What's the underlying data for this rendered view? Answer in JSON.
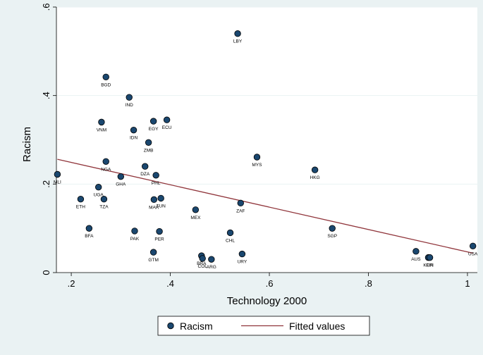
{
  "chart_data": {
    "type": "scatter",
    "title": "",
    "xlabel": "Technology 2000",
    "ylabel": "Racism",
    "xlim": [
      0.17,
      1.02
    ],
    "ylim": [
      0,
      0.6
    ],
    "xticks": [
      0.2,
      0.4,
      0.6,
      0.8,
      1.0
    ],
    "xtick_labels": [
      ".2",
      ".4",
      ".6",
      ".8",
      "1"
    ],
    "yticks": [
      0,
      0.2,
      0.4,
      0.6
    ],
    "ytick_labels": [
      "0",
      ".2",
      ".4",
      ".6"
    ],
    "grid": "horizontal",
    "legend_position": "bottom",
    "colors": {
      "marker": "#1a476f",
      "fit_line": "#90353b",
      "background": "#eaf2f3",
      "plot_bg": "#ffffff",
      "grid": "#eaf2f3"
    },
    "series": [
      {
        "name": "Racism",
        "kind": "scatter",
        "points": [
          {
            "label": "MLI",
            "x": 0.172,
            "y": 0.222
          },
          {
            "label": "ETH",
            "x": 0.219,
            "y": 0.166
          },
          {
            "label": "BFA",
            "x": 0.236,
            "y": 0.1
          },
          {
            "label": "UGA",
            "x": 0.255,
            "y": 0.193
          },
          {
            "label": "VNM",
            "x": 0.261,
            "y": 0.34
          },
          {
            "label": "TZA",
            "x": 0.266,
            "y": 0.166
          },
          {
            "label": "BGD",
            "x": 0.27,
            "y": 0.442
          },
          {
            "label": "NGA",
            "x": 0.27,
            "y": 0.251
          },
          {
            "label": "GHA",
            "x": 0.3,
            "y": 0.217
          },
          {
            "label": "IND",
            "x": 0.317,
            "y": 0.396
          },
          {
            "label": "IDN",
            "x": 0.326,
            "y": 0.322
          },
          {
            "label": "PAK",
            "x": 0.328,
            "y": 0.094
          },
          {
            "label": "DZA",
            "x": 0.349,
            "y": 0.24
          },
          {
            "label": "ZMB",
            "x": 0.356,
            "y": 0.294
          },
          {
            "label": "EGY",
            "x": 0.366,
            "y": 0.342
          },
          {
            "label": "GTM",
            "x": 0.366,
            "y": 0.046
          },
          {
            "label": "MAR",
            "x": 0.367,
            "y": 0.165
          },
          {
            "label": "PHL",
            "x": 0.371,
            "y": 0.22
          },
          {
            "label": "PER",
            "x": 0.378,
            "y": 0.093
          },
          {
            "label": "TUN",
            "x": 0.381,
            "y": 0.168
          },
          {
            "label": "ECU",
            "x": 0.393,
            "y": 0.345
          },
          {
            "label": "MEX",
            "x": 0.451,
            "y": 0.142
          },
          {
            "label": "BRA",
            "x": 0.463,
            "y": 0.038
          },
          {
            "label": "COL",
            "x": 0.465,
            "y": 0.032
          },
          {
            "label": "ARG",
            "x": 0.483,
            "y": 0.03
          },
          {
            "label": "CHL",
            "x": 0.521,
            "y": 0.09
          },
          {
            "label": "LBY",
            "x": 0.536,
            "y": 0.54
          },
          {
            "label": "ZAF",
            "x": 0.542,
            "y": 0.157
          },
          {
            "label": "URY",
            "x": 0.545,
            "y": 0.042
          },
          {
            "label": "MYS",
            "x": 0.575,
            "y": 0.261
          },
          {
            "label": "HKG",
            "x": 0.692,
            "y": 0.232
          },
          {
            "label": "SGP",
            "x": 0.727,
            "y": 0.1
          },
          {
            "label": "AUS",
            "x": 0.896,
            "y": 0.048
          },
          {
            "label": "KOR",
            "x": 0.921,
            "y": 0.034
          },
          {
            "label": "FIN",
            "x": 0.924,
            "y": 0.034
          },
          {
            "label": "USA",
            "x": 1.011,
            "y": 0.06
          }
        ]
      },
      {
        "name": "Fitted values",
        "kind": "line",
        "x": [
          0.172,
          1.011
        ],
        "y": [
          0.256,
          0.044
        ]
      }
    ]
  }
}
